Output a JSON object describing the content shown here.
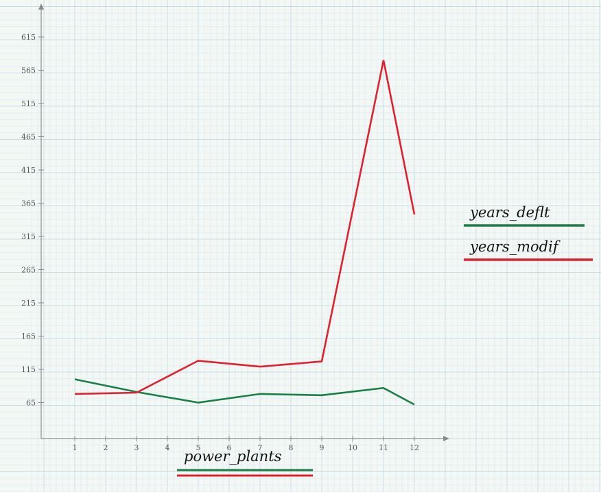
{
  "chart_data": {
    "type": "line",
    "x": [
      1,
      3,
      5,
      7,
      9,
      11,
      12
    ],
    "series": [
      {
        "name": "years_deflt",
        "color": "#1a7f46",
        "values": [
          100,
          81,
          65,
          78,
          76,
          87,
          62
        ]
      },
      {
        "name": "years_modif",
        "color": "#e0202e",
        "values": [
          78,
          80,
          128,
          119,
          127,
          580,
          348
        ]
      }
    ],
    "xticks": [
      1,
      2,
      3,
      4,
      5,
      6,
      7,
      8,
      9,
      10,
      11,
      12
    ],
    "yticks": [
      65,
      115,
      165,
      215,
      265,
      315,
      365,
      415,
      465,
      515,
      565,
      615
    ],
    "xlim": [
      0,
      13
    ],
    "ylim": [
      10,
      660
    ],
    "xlabel": "power_plants",
    "ylabel": "",
    "grid": true,
    "legend_position": "right"
  }
}
